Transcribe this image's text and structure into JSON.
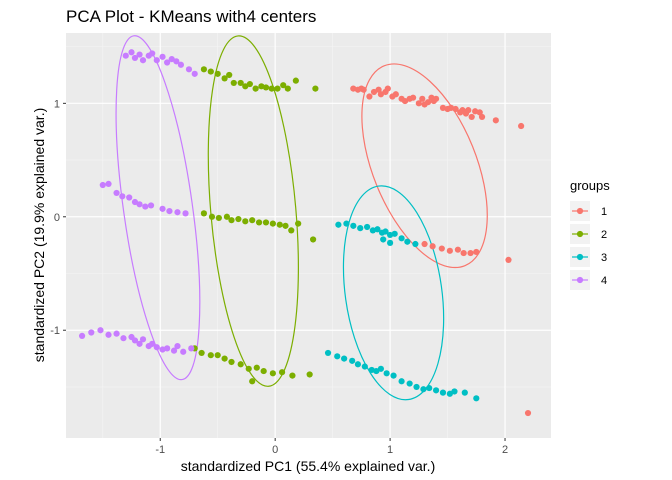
{
  "chart_data": {
    "type": "scatter",
    "title": "PCA Plot - KMeans with4 centers",
    "xlabel": "standardized PC1 (55.4% explained var.)",
    "ylabel": "standardized PC2 (19.9% explained var.)",
    "xlim": [
      -1.82,
      2.4
    ],
    "ylim": [
      -1.95,
      1.62
    ],
    "xticks": [
      -1,
      0,
      1,
      2
    ],
    "xtick_labels": [
      "-1",
      "0",
      "1",
      "2"
    ],
    "yticks": [
      -1,
      0,
      1
    ],
    "ytick_labels": [
      "-1",
      "0",
      "1"
    ],
    "grid": true,
    "legend": {
      "title": "groups",
      "position": "right"
    },
    "series": [
      {
        "name": "1",
        "color": "#F8766D",
        "points": [
          [
            0.68,
            1.13
          ],
          [
            0.72,
            1.12
          ],
          [
            0.75,
            1.13
          ],
          [
            0.77,
            1.12
          ],
          [
            0.82,
            1.06
          ],
          [
            0.86,
            1.1
          ],
          [
            0.9,
            1.12
          ],
          [
            0.92,
            1.08
          ],
          [
            0.96,
            1.1
          ],
          [
            0.98,
            1.13
          ],
          [
            1.02,
            1.06
          ],
          [
            1.05,
            1.08
          ],
          [
            1.1,
            1.04
          ],
          [
            1.13,
            1.02
          ],
          [
            1.17,
            1.04
          ],
          [
            1.2,
            1.05
          ],
          [
            1.25,
            1.0
          ],
          [
            1.28,
            1.04
          ],
          [
            1.3,
            0.99
          ],
          [
            1.33,
            1.01
          ],
          [
            1.36,
            1.05
          ],
          [
            1.38,
            1.02
          ],
          [
            1.4,
            1.04
          ],
          [
            1.46,
            0.96
          ],
          [
            1.5,
            0.95
          ],
          [
            1.53,
            0.96
          ],
          [
            1.57,
            0.95
          ],
          [
            1.61,
            0.92
          ],
          [
            1.63,
            0.94
          ],
          [
            1.66,
            0.91
          ],
          [
            1.68,
            0.94
          ],
          [
            1.71,
            0.88
          ],
          [
            1.74,
            0.93
          ],
          [
            1.78,
            0.92
          ],
          [
            1.8,
            0.88
          ],
          [
            1.92,
            0.85
          ],
          [
            2.14,
            0.8
          ],
          [
            1.3,
            -0.24
          ],
          [
            1.37,
            -0.26
          ],
          [
            1.45,
            -0.28
          ],
          [
            1.52,
            -0.3
          ],
          [
            1.59,
            -0.29
          ],
          [
            1.64,
            -0.32
          ],
          [
            1.7,
            -0.32
          ],
          [
            1.75,
            -0.31
          ],
          [
            2.03,
            -0.38
          ],
          [
            2.2,
            -1.73
          ]
        ]
      },
      {
        "name": "2",
        "color": "#7CAE00",
        "points": [
          [
            -0.62,
            1.3
          ],
          [
            -0.56,
            1.28
          ],
          [
            -0.5,
            1.26
          ],
          [
            -0.44,
            1.22
          ],
          [
            -0.4,
            1.25
          ],
          [
            -0.36,
            1.18
          ],
          [
            -0.3,
            1.18
          ],
          [
            -0.26,
            1.15
          ],
          [
            -0.22,
            1.17
          ],
          [
            -0.17,
            1.13
          ],
          [
            -0.12,
            1.15
          ],
          [
            -0.08,
            1.14
          ],
          [
            -0.03,
            1.13
          ],
          [
            0.02,
            1.13
          ],
          [
            0.07,
            1.16
          ],
          [
            0.11,
            1.13
          ],
          [
            0.18,
            1.2
          ],
          [
            0.35,
            1.13
          ],
          [
            -0.62,
            0.03
          ],
          [
            -0.55,
            0.0
          ],
          [
            -0.49,
            -0.01
          ],
          [
            -0.42,
            0.0
          ],
          [
            -0.38,
            -0.03
          ],
          [
            -0.32,
            -0.02
          ],
          [
            -0.26,
            -0.04
          ],
          [
            -0.2,
            -0.03
          ],
          [
            -0.14,
            -0.05
          ],
          [
            -0.08,
            -0.05
          ],
          [
            -0.02,
            -0.06
          ],
          [
            0.04,
            -0.07
          ],
          [
            0.09,
            -0.08
          ],
          [
            0.14,
            -0.12
          ],
          [
            0.2,
            -0.06
          ],
          [
            0.33,
            -0.2
          ],
          [
            -0.7,
            -1.16
          ],
          [
            -0.64,
            -1.2
          ],
          [
            -0.56,
            -1.22
          ],
          [
            -0.5,
            -1.22
          ],
          [
            -0.44,
            -1.25
          ],
          [
            -0.38,
            -1.28
          ],
          [
            -0.3,
            -1.3
          ],
          [
            -0.23,
            -1.34
          ],
          [
            -0.16,
            -1.33
          ],
          [
            -0.1,
            -1.36
          ],
          [
            -0.02,
            -1.38
          ],
          [
            0.06,
            -1.37
          ],
          [
            0.15,
            -1.4
          ],
          [
            0.3,
            -1.39
          ],
          [
            -0.2,
            -1.45
          ]
        ]
      },
      {
        "name": "3",
        "color": "#00BFC4",
        "points": [
          [
            0.55,
            -0.07
          ],
          [
            0.62,
            -0.06
          ],
          [
            0.68,
            -0.08
          ],
          [
            0.74,
            -0.1
          ],
          [
            0.8,
            -0.09
          ],
          [
            0.85,
            -0.12
          ],
          [
            0.89,
            -0.11
          ],
          [
            0.93,
            -0.14
          ],
          [
            0.96,
            -0.13
          ],
          [
            1.0,
            -0.16
          ],
          [
            1.04,
            -0.15
          ],
          [
            1.1,
            -0.19
          ],
          [
            1.15,
            -0.22
          ],
          [
            1.22,
            -0.24
          ],
          [
            0.94,
            -0.2
          ],
          [
            1.0,
            -0.23
          ],
          [
            0.46,
            -1.2
          ],
          [
            0.54,
            -1.23
          ],
          [
            0.6,
            -1.25
          ],
          [
            0.67,
            -1.27
          ],
          [
            0.72,
            -1.3
          ],
          [
            0.78,
            -1.32
          ],
          [
            0.84,
            -1.35
          ],
          [
            0.88,
            -1.36
          ],
          [
            0.92,
            -1.34
          ],
          [
            0.97,
            -1.38
          ],
          [
            1.03,
            -1.4
          ],
          [
            1.1,
            -1.45
          ],
          [
            1.17,
            -1.47
          ],
          [
            1.23,
            -1.5
          ],
          [
            1.29,
            -1.52
          ],
          [
            1.34,
            -1.51
          ],
          [
            1.4,
            -1.53
          ],
          [
            1.46,
            -1.55
          ],
          [
            1.52,
            -1.56
          ],
          [
            1.56,
            -1.54
          ],
          [
            1.65,
            -1.55
          ],
          [
            1.75,
            -1.6
          ]
        ]
      },
      {
        "name": "4",
        "color": "#C77CFF",
        "points": [
          [
            -1.3,
            1.42
          ],
          [
            -1.25,
            1.45
          ],
          [
            -1.22,
            1.4
          ],
          [
            -1.18,
            1.43
          ],
          [
            -1.15,
            1.38
          ],
          [
            -1.1,
            1.42
          ],
          [
            -1.07,
            1.44
          ],
          [
            -1.03,
            1.38
          ],
          [
            -0.98,
            1.41
          ],
          [
            -0.94,
            1.36
          ],
          [
            -0.9,
            1.39
          ],
          [
            -0.86,
            1.37
          ],
          [
            -0.82,
            1.34
          ],
          [
            -0.75,
            1.3
          ],
          [
            -0.7,
            1.26
          ],
          [
            -1.5,
            0.28
          ],
          [
            -1.45,
            0.29
          ],
          [
            -1.38,
            0.21
          ],
          [
            -1.33,
            0.18
          ],
          [
            -1.27,
            0.17
          ],
          [
            -1.22,
            0.13
          ],
          [
            -1.18,
            0.11
          ],
          [
            -1.13,
            0.09
          ],
          [
            -1.08,
            0.1
          ],
          [
            -0.98,
            0.07
          ],
          [
            -0.92,
            0.05
          ],
          [
            -0.85,
            0.04
          ],
          [
            -0.78,
            0.03
          ],
          [
            -1.68,
            -1.05
          ],
          [
            -1.6,
            -1.02
          ],
          [
            -1.52,
            -1.0
          ],
          [
            -1.45,
            -1.04
          ],
          [
            -1.38,
            -1.03
          ],
          [
            -1.32,
            -1.07
          ],
          [
            -1.25,
            -1.06
          ],
          [
            -1.22,
            -1.09
          ],
          [
            -1.18,
            -1.12
          ],
          [
            -1.15,
            -1.08
          ],
          [
            -1.1,
            -1.14
          ],
          [
            -1.07,
            -1.12
          ],
          [
            -1.03,
            -1.15
          ],
          [
            -0.98,
            -1.17
          ],
          [
            -0.94,
            -1.16
          ],
          [
            -0.88,
            -1.18
          ],
          [
            -0.85,
            -1.14
          ],
          [
            -0.8,
            -1.19
          ],
          [
            -0.73,
            -1.16
          ]
        ]
      }
    ],
    "ellipses": [
      {
        "group": "1",
        "color": "#F8766D",
        "cx": 1.3,
        "cy": 0.45,
        "rx": 0.45,
        "ry": 0.95,
        "angle_deg": -22
      },
      {
        "group": "2",
        "color": "#7CAE00",
        "cx": -0.19,
        "cy": 0.05,
        "rx": 0.37,
        "ry": 1.55,
        "angle_deg": -5
      },
      {
        "group": "3",
        "color": "#00BFC4",
        "cx": 1.03,
        "cy": -0.67,
        "rx": 0.42,
        "ry": 0.95,
        "angle_deg": -8
      },
      {
        "group": "4",
        "color": "#C77CFF",
        "cx": -1.02,
        "cy": 0.08,
        "rx": 0.3,
        "ry": 1.53,
        "angle_deg": -8
      }
    ]
  }
}
